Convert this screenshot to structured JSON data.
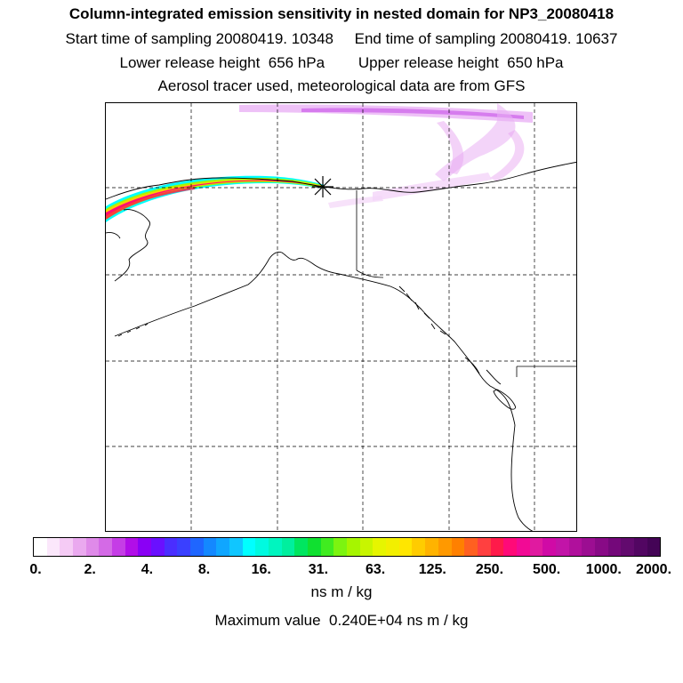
{
  "titles": {
    "main": "Column-integrated emission sensitivity in nested domain for NP3_20080418",
    "sampling": "Start time of sampling 20080419. 10348     End time of sampling 20080419. 10637",
    "release": "Lower release height  656 hPa        Upper release height  650 hPa",
    "tracer": "Aerosol tracer used, meteorological data are from GFS"
  },
  "map": {
    "release_marker": "star-asterisk",
    "grid": "dashed"
  },
  "colorbar": {
    "tick_labels": [
      "0.",
      "2.",
      "4.",
      "8.",
      "16.",
      "31.",
      "63.",
      "125.",
      "250.",
      "500.",
      "1000.",
      "2000."
    ],
    "unit": "ns m / kg",
    "colors": [
      "#ffffff",
      "#fbe7fb",
      "#f5cbf5",
      "#eaa9ef",
      "#df8ae9",
      "#d46ae6",
      "#c53de6",
      "#b10ee8",
      "#8a00f5",
      "#6a10ff",
      "#4a2eff",
      "#3a40ff",
      "#1f66ff",
      "#1488ff",
      "#10a6ff",
      "#10c6ff",
      "#00ffff",
      "#00fae0",
      "#00f5bf",
      "#00ef9e",
      "#00e660",
      "#10e030",
      "#40ec20",
      "#7cf410",
      "#a6f500",
      "#c8f500",
      "#e6f500",
      "#f2ef00",
      "#ffe600",
      "#ffcc00",
      "#ffb300",
      "#ff9900",
      "#ff8000",
      "#ff6020",
      "#ff4040",
      "#ff1a4a",
      "#ff0a78",
      "#f20a95",
      "#e01aa0",
      "#d00aa6",
      "#c214a8",
      "#b0109c",
      "#9c0e92",
      "#880a86",
      "#74087a",
      "#620a6e",
      "#520662",
      "#440456"
    ]
  },
  "max_value_text": "Maximum value  0.240E+04 ns m / kg"
}
